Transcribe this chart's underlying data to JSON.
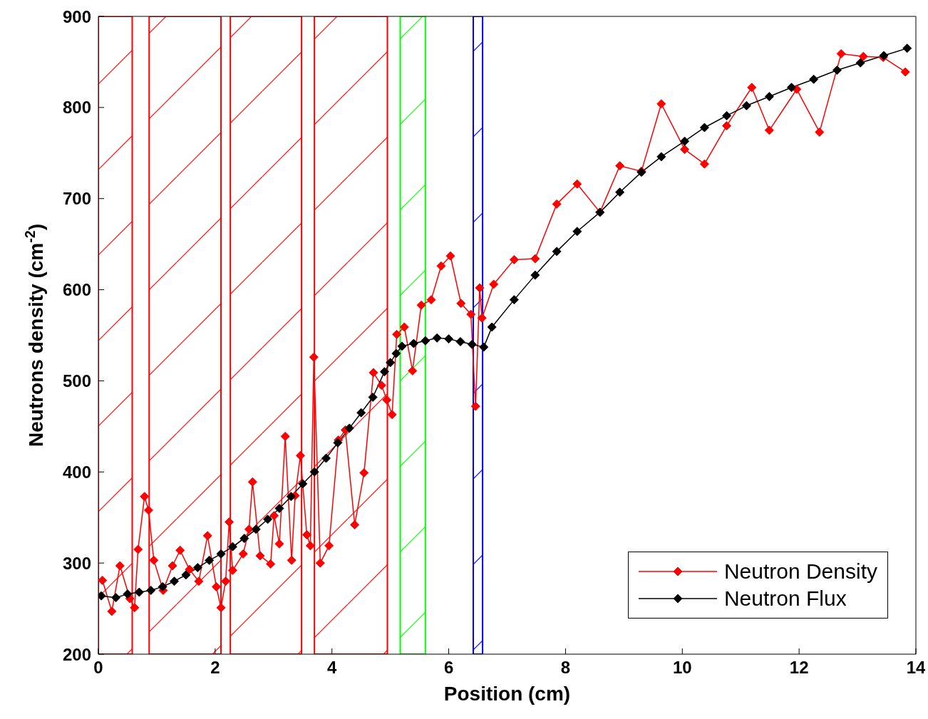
{
  "chart_data": {
    "type": "line",
    "xlabel": "Position (cm)",
    "ylabel": "Neutrons density (cm$^{-2}$)",
    "xlim": [
      0,
      14
    ],
    "xticks": [
      0,
      2,
      4,
      6,
      8,
      10,
      12,
      14
    ],
    "ylim": [
      200,
      900
    ],
    "yticks": [
      200,
      300,
      400,
      500,
      600,
      700,
      800,
      900
    ],
    "grid": false,
    "legend": "bottom right",
    "marker": "diamond",
    "line_style": "solid",
    "bands": [
      {
        "axis": "x",
        "from": 0,
        "to": 0.58,
        "color": "#ff0000"
      },
      {
        "axis": "x",
        "from": 0.87,
        "to": 2.1,
        "color": "#ff0000"
      },
      {
        "axis": "x",
        "from": 2.26,
        "to": 3.48,
        "color": "#ff0000"
      },
      {
        "axis": "x",
        "from": 3.7,
        "to": 4.95,
        "color": "#ff0000"
      },
      {
        "axis": "x",
        "from": 5.17,
        "to": 5.6,
        "color": "#00ff00"
      },
      {
        "axis": "x",
        "from": 6.42,
        "to": 6.58,
        "color": "#0000ff"
      }
    ],
    "series": [
      {
        "name": "Neutron Density",
        "color": "#ff0000",
        "x": [
          0.07,
          0.23,
          0.37,
          0.54,
          0.62,
          0.68,
          0.79,
          0.86,
          0.95,
          1.11,
          1.27,
          1.4,
          1.56,
          1.72,
          1.87,
          2.02,
          2.1,
          2.18,
          2.24,
          2.3,
          2.48,
          2.58,
          2.64,
          2.77,
          2.95,
          3.01,
          3.1,
          3.2,
          3.31,
          3.37,
          3.46,
          3.57,
          3.63,
          3.69,
          3.8,
          3.95,
          4.11,
          4.23,
          4.39,
          4.55,
          4.71,
          4.85,
          4.94,
          5.03,
          5.11,
          5.24,
          5.38,
          5.53,
          5.7,
          5.87,
          6.03,
          6.21,
          6.38,
          6.46,
          6.53,
          6.57,
          6.77,
          7.12,
          7.48,
          7.85,
          8.2,
          8.59,
          8.93,
          9.3,
          9.64,
          10.04,
          10.38,
          10.76,
          11.19,
          11.49,
          11.96,
          12.35,
          12.72,
          13.1,
          13.44,
          13.82
        ],
        "values": [
          281,
          247,
          297,
          261,
          251,
          315,
          373,
          358,
          303,
          270,
          297,
          314,
          293,
          280,
          330,
          274,
          251,
          280,
          345,
          292,
          310,
          337,
          389,
          308,
          299,
          352,
          321,
          439,
          303,
          374,
          418,
          331,
          319,
          526,
          300,
          319,
          435,
          446,
          342,
          399,
          509,
          495,
          479,
          463,
          551,
          559,
          511,
          583,
          589,
          626,
          637,
          585,
          573,
          472,
          602,
          569,
          606,
          633,
          634,
          694,
          716,
          685,
          736,
          730,
          804,
          754,
          738,
          780,
          822,
          775,
          820,
          773,
          859,
          856,
          855,
          839
        ]
      },
      {
        "name": "Neutron Flux",
        "color": "#000000",
        "x": [
          0.05,
          0.3,
          0.5,
          0.7,
          0.9,
          1.1,
          1.3,
          1.5,
          1.7,
          1.9,
          2.1,
          2.3,
          2.5,
          2.7,
          2.9,
          3.1,
          3.3,
          3.5,
          3.7,
          3.9,
          4.1,
          4.3,
          4.5,
          4.7,
          4.9,
          5.0,
          5.1,
          5.2,
          5.4,
          5.6,
          5.8,
          6.0,
          6.2,
          6.4,
          6.6,
          6.74,
          7.12,
          7.48,
          7.85,
          8.2,
          8.59,
          8.93,
          9.3,
          9.64,
          10.04,
          10.38,
          10.76,
          11.1,
          11.49,
          11.87,
          12.25,
          12.65,
          13.05,
          13.45,
          13.85
        ],
        "values": [
          264,
          262,
          266,
          268,
          270,
          274,
          280,
          287,
          295,
          303,
          310,
          318,
          327,
          337,
          348,
          360,
          373,
          387,
          400,
          415,
          432,
          448,
          465,
          482,
          510,
          520,
          530,
          538,
          541,
          544,
          547,
          546,
          543,
          540,
          537,
          559,
          589,
          616,
          642,
          664,
          685,
          707,
          729,
          746,
          763,
          778,
          791,
          802,
          812,
          822,
          831,
          841,
          849,
          857,
          865
        ]
      }
    ]
  }
}
